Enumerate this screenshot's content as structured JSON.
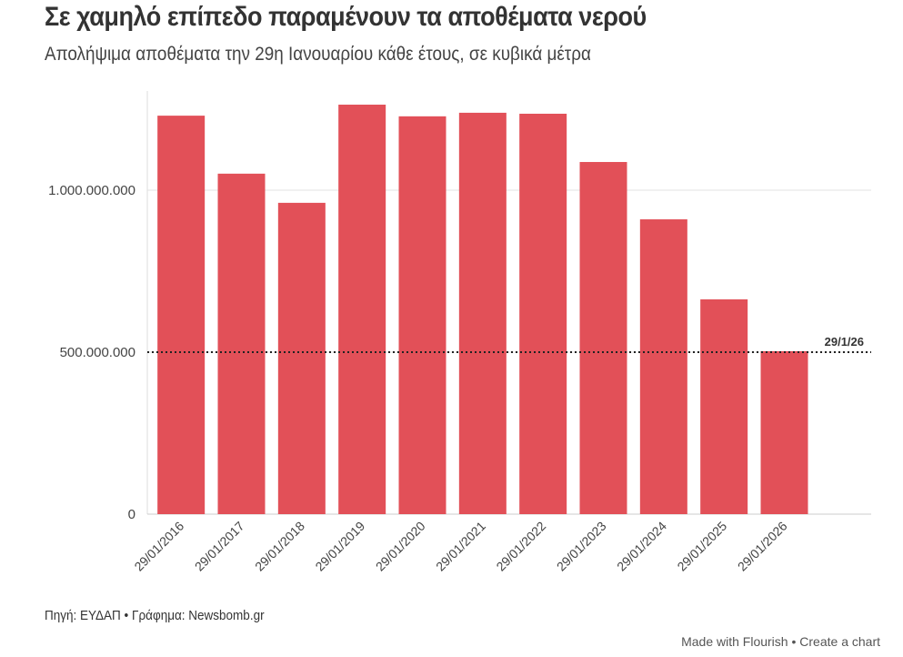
{
  "title": "Σε χαμηλό επίπεδο παραμένουν τα αποθέματα νερού",
  "subtitle": "Απολήψιμα αποθέματα την 29η Ιανουαρίου κάθε έτους, σε κυβικά μέτρα",
  "source": "Πηγή: ΕΥΔΑΠ • Γράφημα: Newsbomb.gr",
  "footer": {
    "made": "Made with Flourish",
    "sep": " • ",
    "create": "Create a chart"
  },
  "chart_data": {
    "type": "bar",
    "title": "Σε χαμηλό επίπεδο παραμένουν τα αποθέματα νερού",
    "categories": [
      "29/01/2016",
      "29/01/2017",
      "29/01/2018",
      "29/01/2019",
      "29/01/2020",
      "29/01/2021",
      "29/01/2022",
      "29/01/2023",
      "29/01/2024",
      "29/01/2025",
      "29/01/2026"
    ],
    "values": [
      1230000000,
      1051000000,
      961000000,
      1264000000,
      1228000000,
      1239000000,
      1236000000,
      1087000000,
      910000000,
      663000000,
      503000000
    ],
    "yticks": [
      0,
      500000000,
      1000000000
    ],
    "ytick_labels": [
      "0",
      "500.000.000",
      "1.000.000.000"
    ],
    "ylim": [
      0,
      1300000000
    ],
    "bar_color": "#e0474f",
    "reference_line": {
      "value": 500000000,
      "label": "29/1/26",
      "style": "dotted"
    }
  }
}
